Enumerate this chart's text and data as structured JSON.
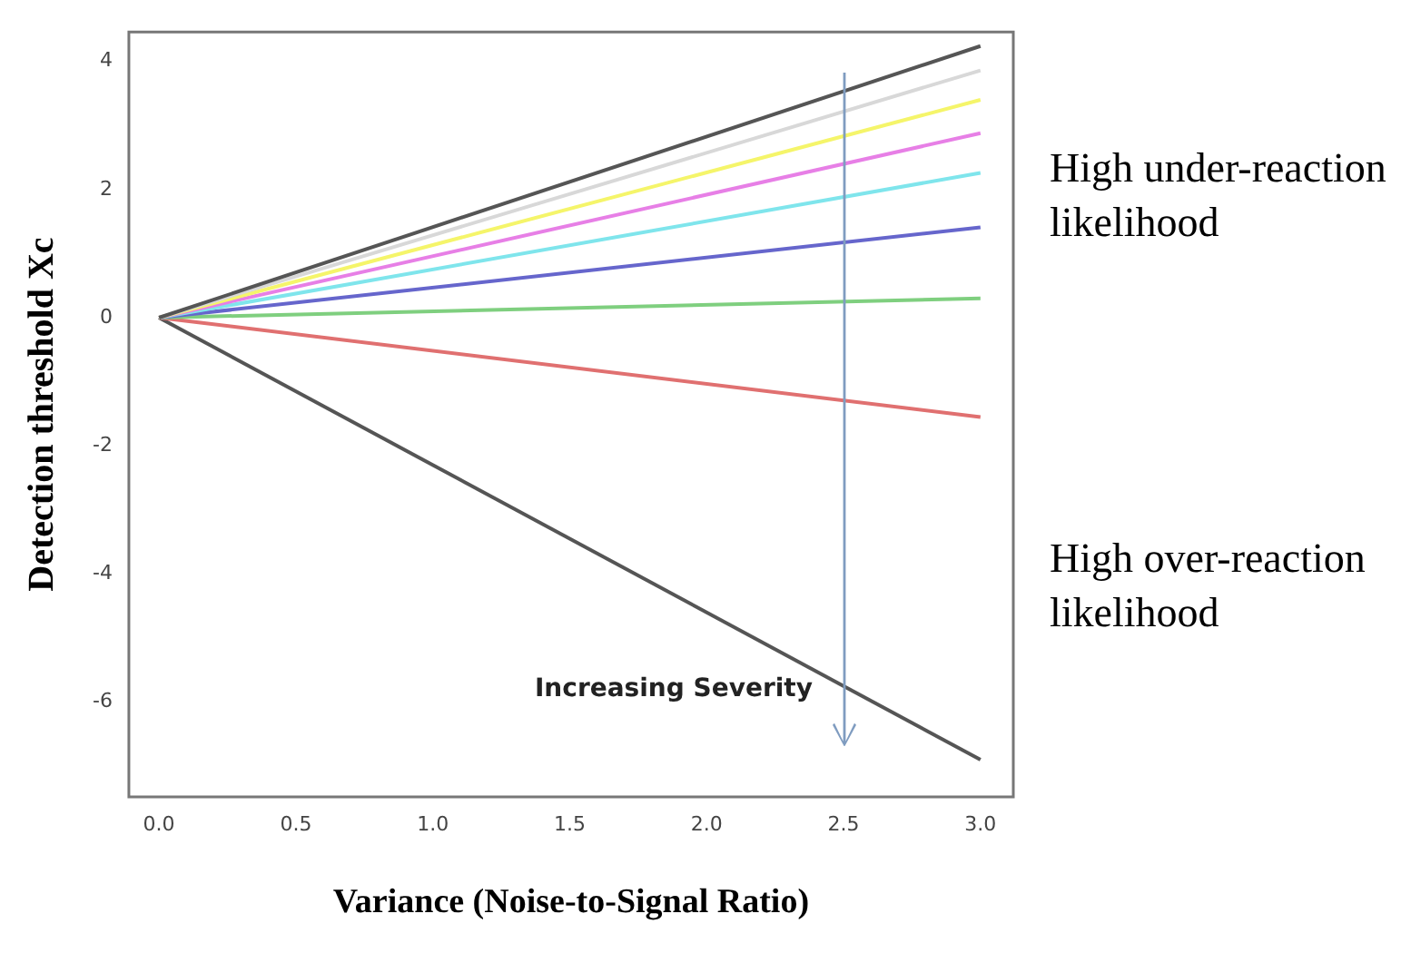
{
  "chart_data": {
    "type": "line",
    "xlabel": "Variance (Noise-to-Signal Ratio)",
    "ylabel": "Detection threshold Xc",
    "x": [
      0,
      3
    ],
    "series": [
      {
        "color": "#555555",
        "values": [
          0,
          4.24
        ]
      },
      {
        "color": "#d8d8d8",
        "values": [
          0,
          3.86
        ]
      },
      {
        "color": "#f5f56a",
        "values": [
          0,
          3.4
        ]
      },
      {
        "color": "#e77fe6",
        "values": [
          0,
          2.88
        ]
      },
      {
        "color": "#7fe5ec",
        "values": [
          0,
          2.26
        ]
      },
      {
        "color": "#6666cc",
        "values": [
          0,
          1.41
        ]
      },
      {
        "color": "#7fcf7f",
        "values": [
          0,
          0.3
        ]
      },
      {
        "color": "#e07070",
        "values": [
          0,
          -1.55
        ]
      },
      {
        "color": "#555555",
        "values": [
          0,
          -6.9
        ]
      }
    ],
    "xlim": [
      -0.11,
      3.12
    ],
    "ylim": [
      -7.48,
      4.46
    ],
    "xticks": [
      {
        "value": 0,
        "label": "0.0"
      },
      {
        "value": 0.5,
        "label": "0.5"
      },
      {
        "value": 1,
        "label": "1.0"
      },
      {
        "value": 1.5,
        "label": "1.5"
      },
      {
        "value": 2,
        "label": "2.0"
      },
      {
        "value": 2.5,
        "label": "2.5"
      },
      {
        "value": 3,
        "label": "3.0"
      }
    ],
    "yticks": [
      -6,
      -4,
      -2,
      0,
      2,
      4
    ],
    "grid": false,
    "legend": false,
    "marker": "none",
    "line_style": "solid",
    "annotations": [
      "Increasing Severity",
      "High under-reaction likelihood",
      "High over-reaction likelihood"
    ]
  }
}
